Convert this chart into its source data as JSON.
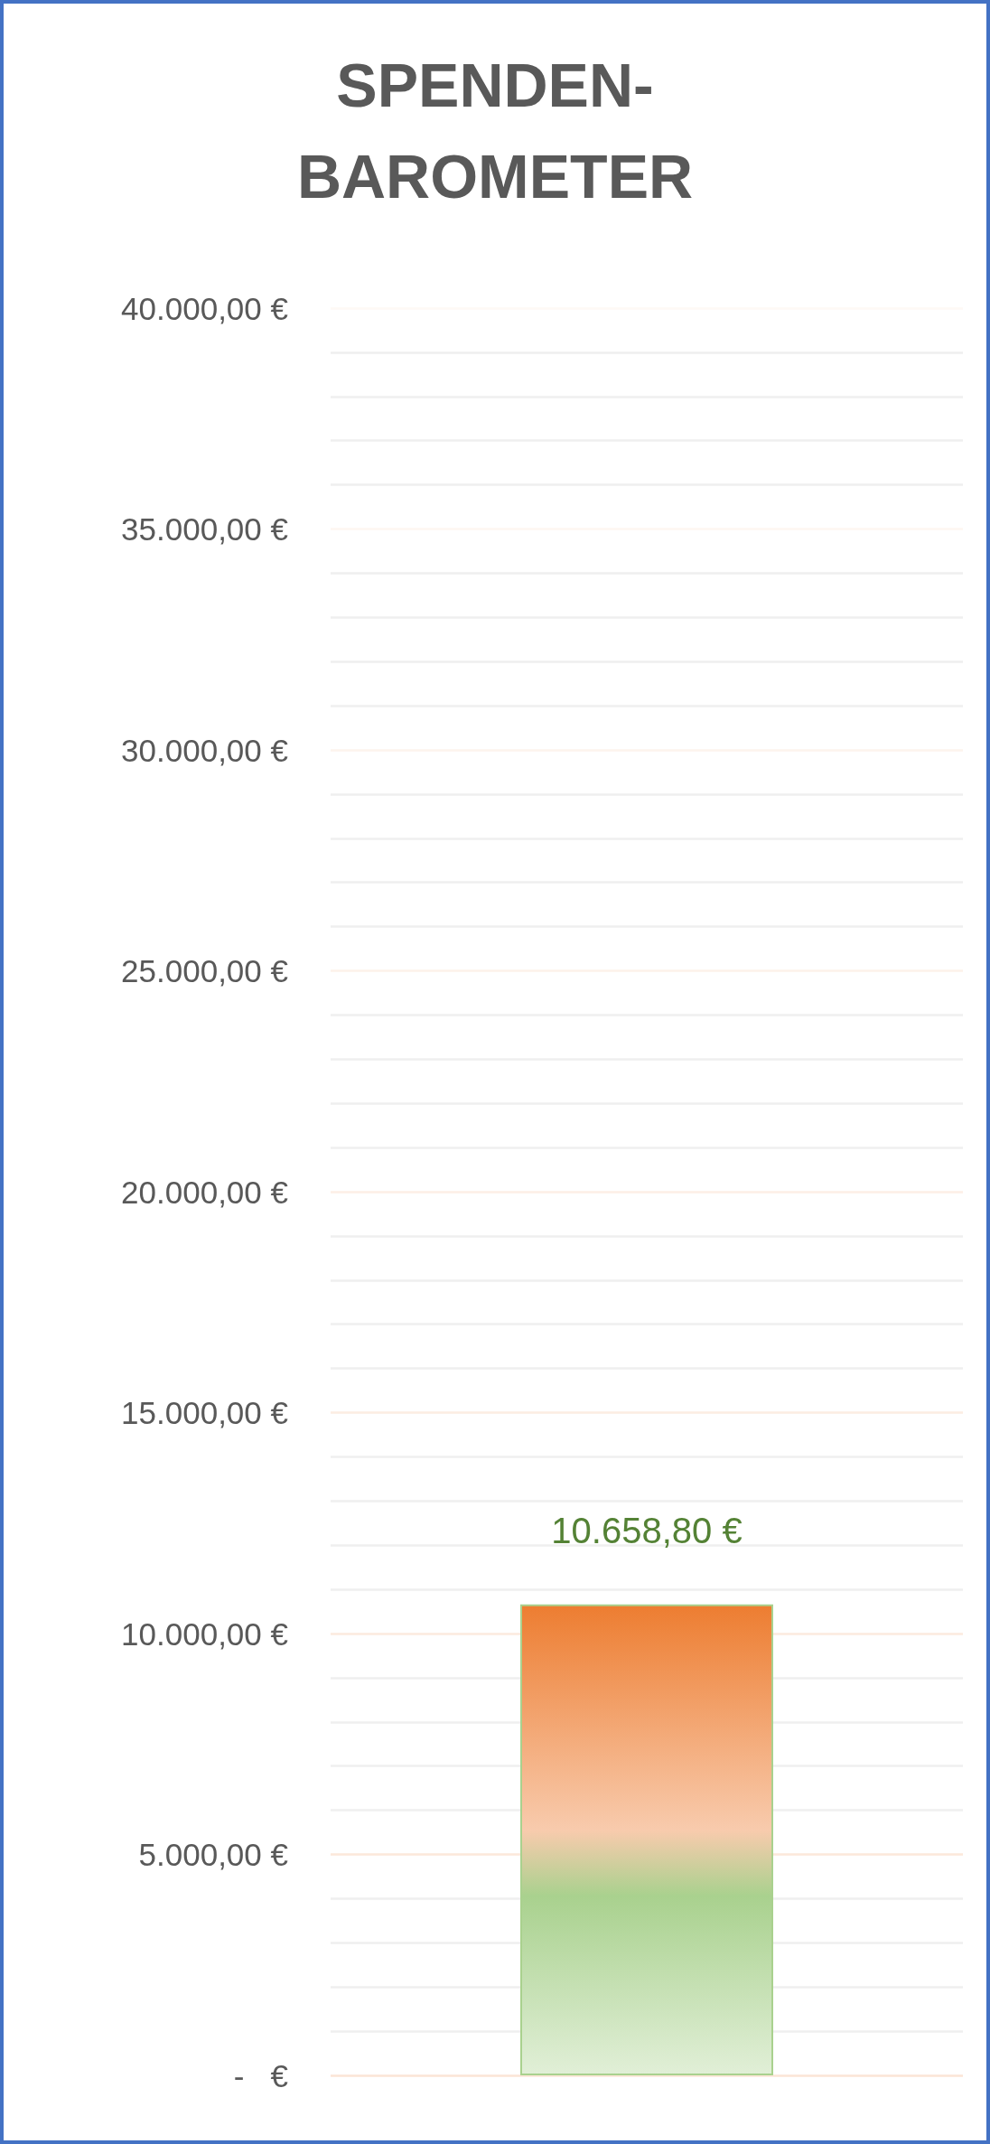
{
  "chart_data": {
    "type": "bar",
    "title": "SPENDEN-\nBAROMETER",
    "categories": [
      null
    ],
    "values": [
      10658.8
    ],
    "value_labels": [
      "10.658,80 €"
    ],
    "color": "#a9d18e",
    "ylim": [
      0,
      40000
    ],
    "yticks": [
      {
        "value": 0,
        "label": "-   €"
      },
      {
        "value": 1000,
        "label": null
      },
      {
        "value": 2000,
        "label": null
      },
      {
        "value": 3000,
        "label": null
      },
      {
        "value": 4000,
        "label": null
      },
      {
        "value": 5000,
        "label": "5.000,00 €"
      },
      {
        "value": 6000,
        "label": null
      },
      {
        "value": 7000,
        "label": null
      },
      {
        "value": 8000,
        "label": null
      },
      {
        "value": 9000,
        "label": null
      },
      {
        "value": 10000,
        "label": "10.000,00 €"
      },
      {
        "value": 11000,
        "label": null
      },
      {
        "value": 12000,
        "label": null
      },
      {
        "value": 13000,
        "label": null
      },
      {
        "value": 14000,
        "label": null
      },
      {
        "value": 15000,
        "label": "15.000,00 €"
      },
      {
        "value": 16000,
        "label": null
      },
      {
        "value": 17000,
        "label": null
      },
      {
        "value": 18000,
        "label": null
      },
      {
        "value": 19000,
        "label": null
      },
      {
        "value": 20000,
        "label": "20.000,00 €"
      },
      {
        "value": 21000,
        "label": null
      },
      {
        "value": 22000,
        "label": null
      },
      {
        "value": 23000,
        "label": null
      },
      {
        "value": 24000,
        "label": null
      },
      {
        "value": 25000,
        "label": "25.000,00 €"
      },
      {
        "value": 26000,
        "label": null
      },
      {
        "value": 27000,
        "label": null
      },
      {
        "value": 28000,
        "label": null
      },
      {
        "value": 29000,
        "label": null
      },
      {
        "value": 30000,
        "label": "30.000,00 €"
      },
      {
        "value": 31000,
        "label": null
      },
      {
        "value": 32000,
        "label": null
      },
      {
        "value": 33000,
        "label": null
      },
      {
        "value": 34000,
        "label": null
      },
      {
        "value": 35000,
        "label": "35.000,00 €"
      },
      {
        "value": 36000,
        "label": null
      },
      {
        "value": 37000,
        "label": null
      },
      {
        "value": 38000,
        "label": null
      },
      {
        "value": 39000,
        "label": null
      },
      {
        "value": 40000,
        "label": "40.000,00 €"
      }
    ],
    "grid": true,
    "tick_labels": "y"
  }
}
